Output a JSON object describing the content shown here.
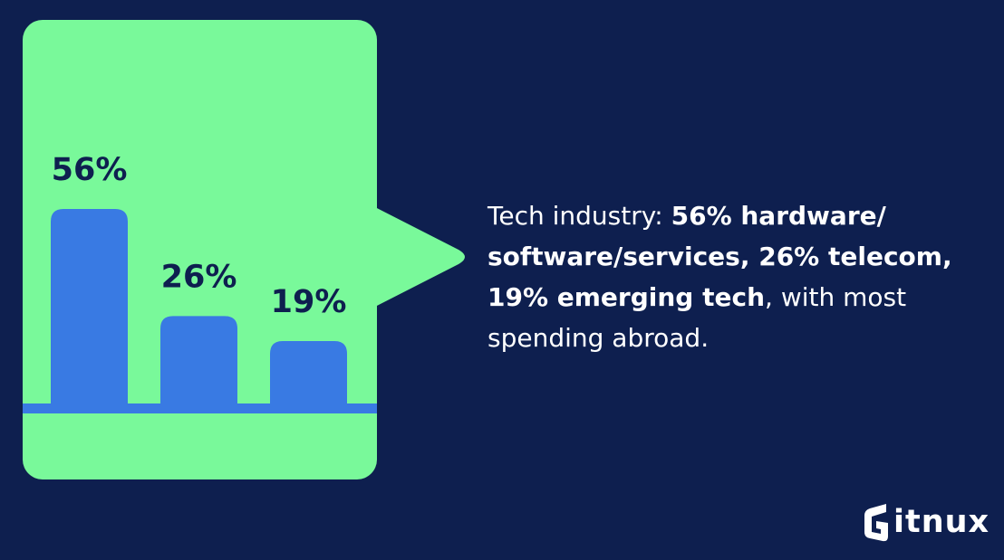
{
  "chart_data": {
    "type": "bar",
    "categories": [
      "",
      "",
      ""
    ],
    "values": [
      56,
      26,
      19
    ],
    "value_labels": [
      "56%",
      "26%",
      "19%"
    ],
    "title": "",
    "xlabel": "",
    "ylabel": "",
    "ylim": [
      0,
      100
    ],
    "grid": false,
    "legend": "none"
  },
  "caption": {
    "part1": "Tech industry: ",
    "bold1": "56% hardware/ software/services, 26% telecom, 19% emerging tech",
    "part2": ", with most spending abroad."
  },
  "brand": {
    "logo_text": "itnux"
  },
  "colors": {
    "background": "#0e1f4f",
    "card": "#79f99a",
    "bar": "#397ae3",
    "text_dark": "#0e1f4f",
    "text_light": "#ffffff"
  }
}
